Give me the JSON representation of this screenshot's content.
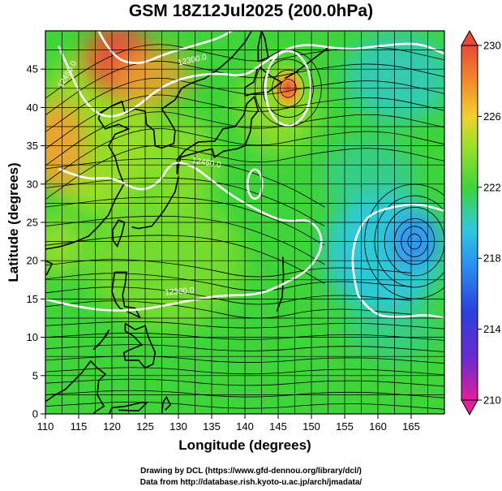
{
  "title": "GSM 18Z12Jul2025 (200.0hPa)",
  "map": {
    "x_axis": {
      "label": "Longitude (degrees)",
      "range": [
        110,
        170
      ],
      "ticks": [
        110,
        115,
        120,
        125,
        130,
        135,
        140,
        145,
        150,
        155,
        160,
        165
      ]
    },
    "y_axis": {
      "label": "Latitude (degrees)",
      "range": [
        0,
        50
      ],
      "ticks": [
        0,
        5,
        10,
        15,
        20,
        25,
        30,
        35,
        40,
        45
      ]
    },
    "grid": true,
    "shading_colors": {
      "green": "#3ed43a",
      "yellow_green": "#9fe028",
      "orange": "#f2a030",
      "red": "#e84a3a",
      "cyan": "#30c8e0",
      "blue": "#3a8cf0"
    },
    "contour_labels": [
      "12300.0",
      "12450.0",
      "12450.0",
      "12300.0"
    ],
    "contour_levels_m": [
      12300,
      12450,
      12600
    ],
    "features": [
      {
        "type": "anticyclone-center",
        "lon": 146.5,
        "lat": 42.5
      },
      {
        "type": "cyclone-center",
        "lon": 165.5,
        "lat": 22.5
      }
    ]
  },
  "colorbar": {
    "ticks": [
      230,
      226,
      222,
      218,
      214,
      210
    ],
    "range": [
      210,
      230
    ],
    "colors": [
      "#e0209a",
      "#3a2ad8",
      "#2a80f0",
      "#30c8e0",
      "#3ed43a",
      "#9fe028",
      "#f2d030",
      "#f28a2a",
      "#e84a3a"
    ]
  },
  "credits": {
    "line1": "Drawing by DCL (https://www.gfd-dennou.org/library/dcl/)",
    "line2": "Data from http://database.rish.kyoto-u.ac.jp/arch/jmadata/"
  }
}
